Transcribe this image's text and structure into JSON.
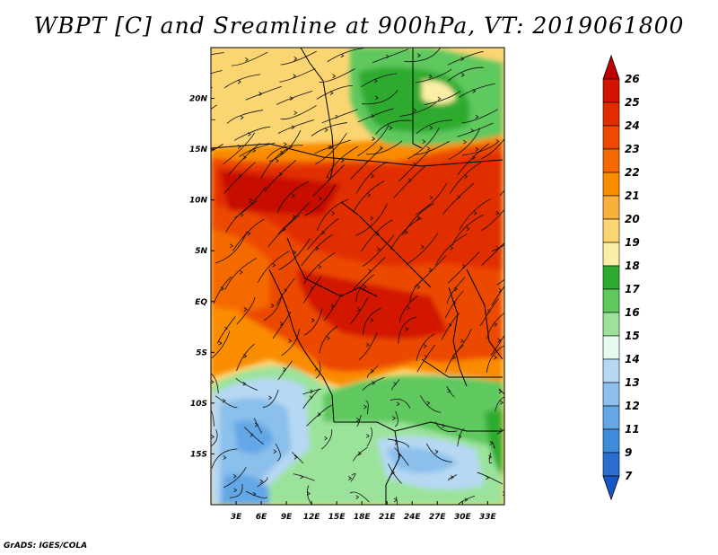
{
  "title": "WBPT [C] and Sreamline at 900hPa, VT: 2019061800",
  "footer": "GrADS: IGES/COLA",
  "map": {
    "lat_labels": [
      "20N",
      "15N",
      "10N",
      "5N",
      "EQ",
      "5S",
      "10S",
      "15S"
    ],
    "lat_values": [
      20,
      15,
      10,
      5,
      0,
      -5,
      -10,
      -15
    ],
    "lon_labels": [
      "3E",
      "6E",
      "9E",
      "12E",
      "15E",
      "18E",
      "21E",
      "24E",
      "27E",
      "30E",
      "33E"
    ],
    "lon_values": [
      3,
      6,
      9,
      12,
      15,
      18,
      21,
      24,
      27,
      30,
      33
    ],
    "lat_range": [
      -20,
      25
    ],
    "lon_range": [
      0,
      35
    ]
  },
  "colorbar": {
    "labels": [
      "26",
      "25",
      "24",
      "23",
      "22",
      "21",
      "20",
      "19",
      "18",
      "17",
      "16",
      "15",
      "14",
      "13",
      "12",
      "11",
      "9",
      "7"
    ],
    "colors": [
      "#c00000",
      "#d21400",
      "#e12d00",
      "#ec4a00",
      "#f46a00",
      "#fa8c00",
      "#fbb03c",
      "#fcd573",
      "#fbefa6",
      "#2fab2f",
      "#5fc85f",
      "#9be39b",
      "#e6faf0",
      "#b6d8f3",
      "#8bbfec",
      "#64a7e6",
      "#3f8cdb",
      "#2a6fd0",
      "#1a55c4"
    ]
  }
}
